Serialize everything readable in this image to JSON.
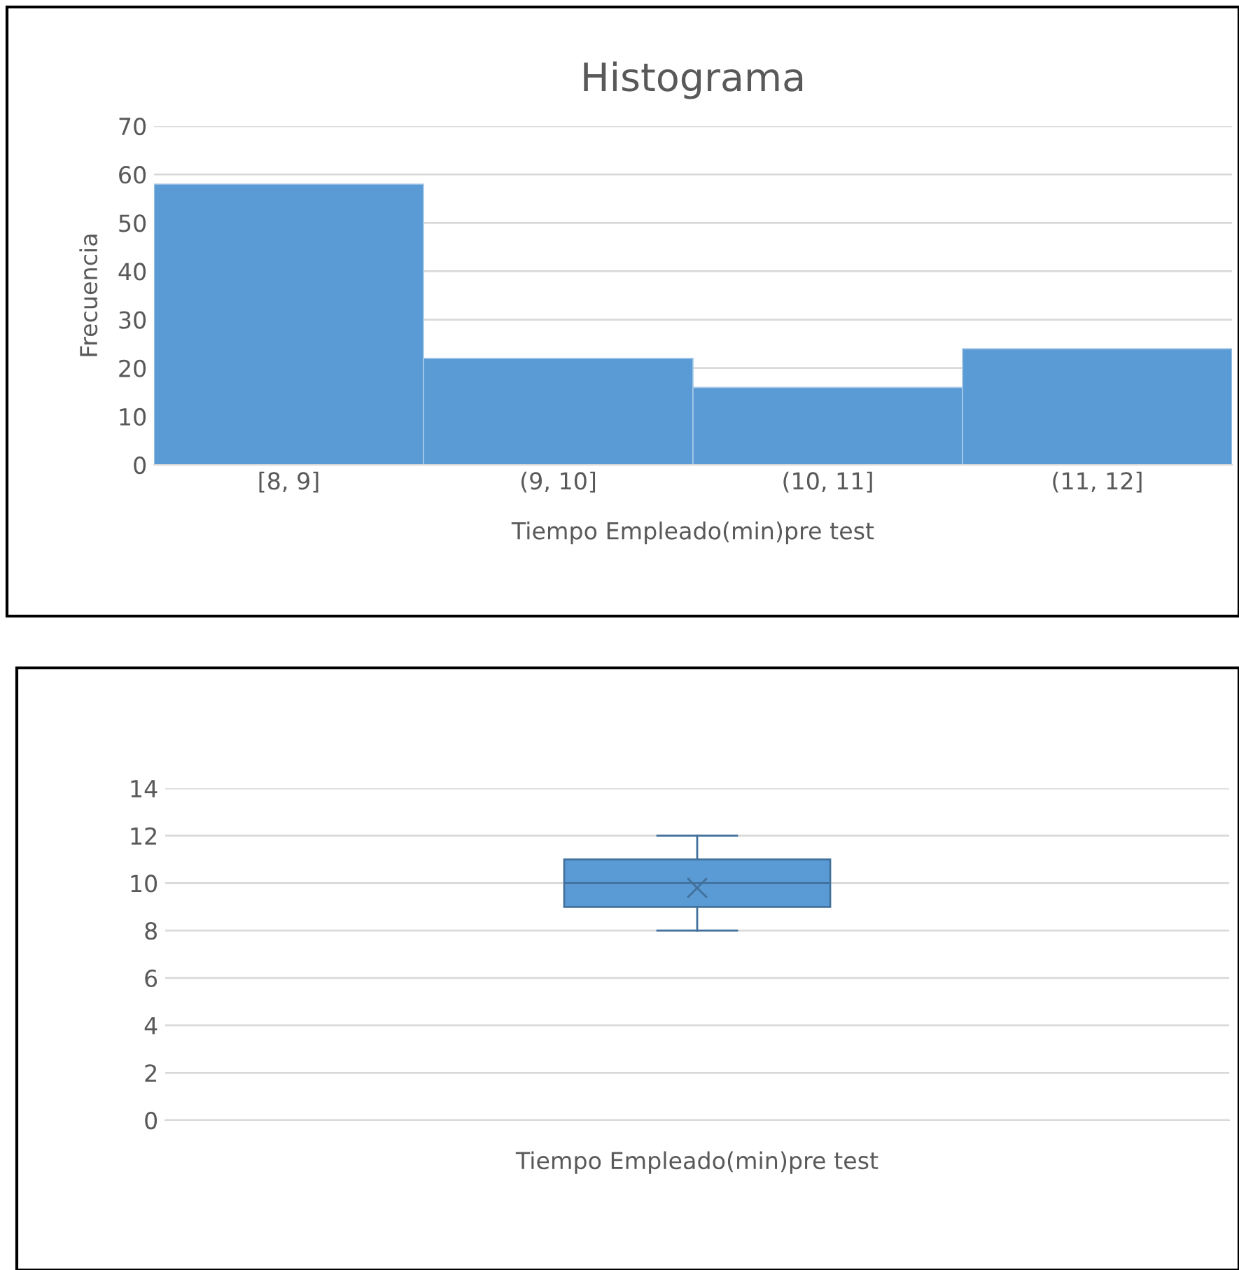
{
  "chart_data": [
    {
      "type": "bar",
      "title": "Histograma",
      "xlabel": "Tiempo Empleado(min)pre test",
      "ylabel": "Frecuencia",
      "categories": [
        "[8, 9]",
        "(9, 10]",
        "(10, 11]",
        "(11, 12]"
      ],
      "values": [
        58,
        22,
        16,
        24
      ],
      "color": "#5b9bd5",
      "ylim": [
        0,
        70
      ],
      "yticks": [
        0,
        10,
        20,
        30,
        40,
        50,
        60,
        70
      ],
      "grid": "y",
      "legend": false
    },
    {
      "type": "box",
      "categories": [
        "Tiempo Empleado(min)pre test"
      ],
      "boxes": [
        {
          "low": 8,
          "q1": 9,
          "median": 10,
          "q3": 11,
          "high": 12,
          "mean": 9.8
        }
      ],
      "color": "#5b9bd5",
      "ylim": [
        0,
        14
      ],
      "yticks": [
        0,
        2,
        4,
        6,
        8,
        10,
        12,
        14
      ],
      "grid": "y",
      "legend": false
    }
  ]
}
